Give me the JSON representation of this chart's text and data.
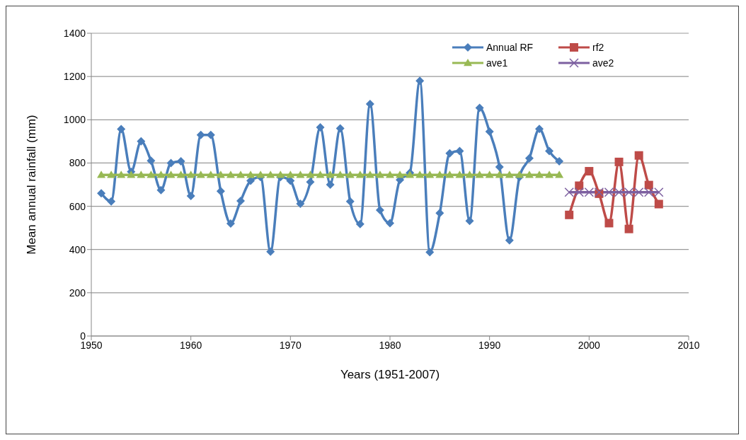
{
  "chart_data": {
    "type": "line",
    "xlabel": "Years (1951-2007)",
    "ylabel": "Mean annual rainfall (mm)",
    "xlim": [
      1950,
      2010
    ],
    "xticks": [
      1950,
      1960,
      1970,
      1980,
      1990,
      2000,
      2010
    ],
    "ylim": [
      0,
      1400
    ],
    "yticks": [
      0,
      200,
      400,
      600,
      800,
      1000,
      1200,
      1400
    ],
    "grid": "y",
    "legend": "top right",
    "series": [
      {
        "name": "Annual RF",
        "color": "#4a7ebb",
        "marker": "diamond",
        "x": [
          1951,
          1952,
          1953,
          1954,
          1955,
          1956,
          1957,
          1958,
          1959,
          1960,
          1961,
          1962,
          1963,
          1964,
          1965,
          1966,
          1967,
          1968,
          1969,
          1970,
          1971,
          1972,
          1973,
          1974,
          1975,
          1976,
          1977,
          1978,
          1979,
          1980,
          1981,
          1982,
          1983,
          1984,
          1985,
          1986,
          1987,
          1988,
          1989,
          1990,
          1991,
          1992,
          1993,
          1994,
          1995,
          1996,
          1997
        ],
        "values": [
          660,
          622,
          957,
          760,
          900,
          810,
          675,
          800,
          808,
          648,
          930,
          930,
          670,
          520,
          625,
          718,
          735,
          390,
          735,
          718,
          612,
          712,
          965,
          700,
          960,
          622,
          518,
          1073,
          582,
          522,
          722,
          755,
          1180,
          388,
          568,
          845,
          855,
          532,
          1055,
          945,
          782,
          442,
          735,
          822,
          958,
          855,
          808
        ]
      },
      {
        "name": "rf2",
        "color": "#be4b48",
        "marker": "square",
        "x": [
          1998,
          1999,
          2000,
          2001,
          2002,
          2003,
          2004,
          2005,
          2006,
          2007
        ],
        "values": [
          560,
          695,
          762,
          658,
          522,
          805,
          495,
          835,
          698,
          610
        ]
      },
      {
        "name": "ave1",
        "color": "#98b954",
        "marker": "triangle",
        "x": [
          1951,
          1952,
          1953,
          1954,
          1955,
          1956,
          1957,
          1958,
          1959,
          1960,
          1961,
          1962,
          1963,
          1964,
          1965,
          1966,
          1967,
          1968,
          1969,
          1970,
          1971,
          1972,
          1973,
          1974,
          1975,
          1976,
          1977,
          1978,
          1979,
          1980,
          1981,
          1982,
          1983,
          1984,
          1985,
          1986,
          1987,
          1988,
          1989,
          1990,
          1991,
          1992,
          1993,
          1994,
          1995,
          1996,
          1997
        ],
        "values": [
          745,
          745,
          745,
          745,
          745,
          745,
          745,
          745,
          745,
          745,
          745,
          745,
          745,
          745,
          745,
          745,
          745,
          745,
          745,
          745,
          745,
          745,
          745,
          745,
          745,
          745,
          745,
          745,
          745,
          745,
          745,
          745,
          745,
          745,
          745,
          745,
          745,
          745,
          745,
          745,
          745,
          745,
          745,
          745,
          745,
          745,
          745
        ]
      },
      {
        "name": "ave2",
        "color": "#7d60a0",
        "marker": "cross",
        "x": [
          1998,
          1999,
          2000,
          2001,
          2002,
          2003,
          2004,
          2005,
          2006,
          2007
        ],
        "values": [
          665,
          665,
          665,
          665,
          665,
          665,
          665,
          665,
          665,
          665
        ]
      }
    ]
  }
}
